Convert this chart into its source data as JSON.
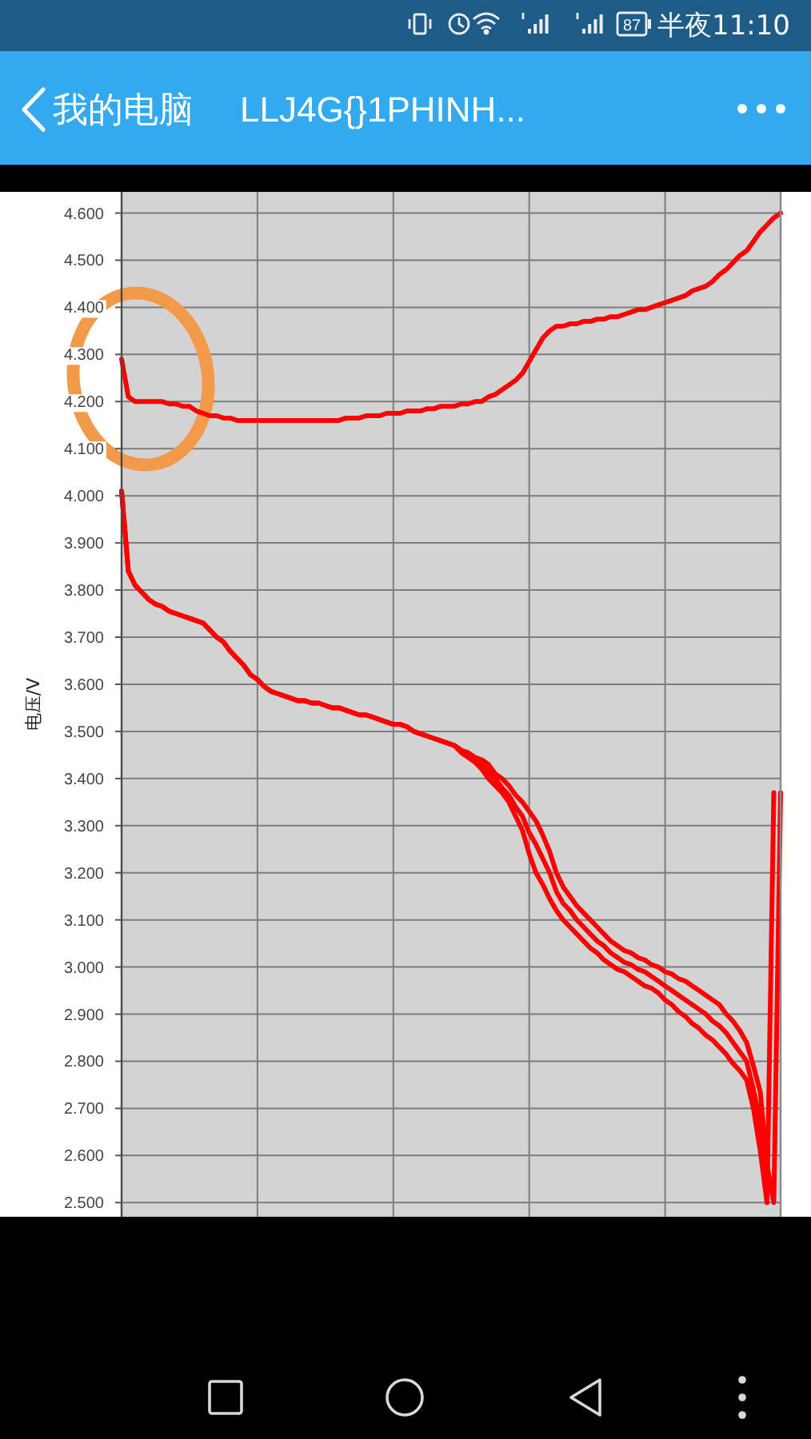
{
  "chart_data": {
    "type": "line",
    "title": "我的电脑",
    "subtitle": "LLJ4G{}1PHINH...",
    "ylabel": "电压/V",
    "annotations": [
      "87",
      "半夜11:10"
    ],
    "categories": [
      null,
      null,
      null,
      null,
      null,
      null,
      null,
      null,
      null,
      null,
      null,
      null,
      null,
      null,
      null,
      null,
      null,
      null,
      null,
      null,
      null,
      null,
      null,
      null,
      null,
      null,
      null,
      null,
      null,
      null,
      null,
      null,
      null,
      null,
      null,
      null,
      null,
      null,
      null,
      null,
      null,
      null,
      null,
      null,
      null,
      null,
      null,
      null,
      null,
      null,
      null,
      null,
      null,
      null,
      null,
      null,
      null,
      null,
      null,
      null,
      null,
      null,
      null,
      null,
      null,
      null,
      null,
      null,
      null,
      null,
      null,
      null,
      null,
      null,
      null,
      null,
      null,
      null,
      null,
      null,
      null,
      null,
      null,
      null,
      null,
      null,
      null,
      null,
      null,
      null,
      null,
      null,
      null,
      null,
      null,
      null,
      null,
      null
    ],
    "ylim": [
      2.47,
      4.645
    ],
    "yticks": [
      {
        "value": 2.5,
        "label": "2.500"
      },
      {
        "value": 2.6,
        "label": "2.600"
      },
      {
        "value": 2.7,
        "label": "2.700"
      },
      {
        "value": 2.8,
        "label": "2.800"
      },
      {
        "value": 2.9,
        "label": "2.900"
      },
      {
        "value": 3.0,
        "label": "3.000"
      },
      {
        "value": 3.1,
        "label": "3.100"
      },
      {
        "value": 3.2,
        "label": "3.200"
      },
      {
        "value": 3.3,
        "label": "3.300"
      },
      {
        "value": 3.4,
        "label": "3.400"
      },
      {
        "value": 3.5,
        "label": "3.500"
      },
      {
        "value": 3.6,
        "label": "3.600"
      },
      {
        "value": 3.7,
        "label": "3.700"
      },
      {
        "value": 3.8,
        "label": "3.800"
      },
      {
        "value": 3.9,
        "label": "3.900"
      },
      {
        "value": 4.0,
        "label": "4.000"
      },
      {
        "value": 4.1,
        "label": "4.100"
      },
      {
        "value": 4.2,
        "label": "4.200"
      },
      {
        "value": 4.3,
        "label": "4.300"
      },
      {
        "value": 4.4,
        "label": "4.400"
      },
      {
        "value": 4.5,
        "label": "4.500"
      },
      {
        "value": 4.6,
        "label": "4.600"
      }
    ],
    "tick_labels": "y",
    "grid": true,
    "line_style": "solid",
    "series": [
      {
        "color": "#ff0000",
        "values": [
          4.29,
          4.21,
          4.2,
          4.2,
          4.2,
          4.2,
          4.2,
          4.195,
          4.195,
          4.19,
          4.19,
          4.18,
          4.175,
          4.17,
          4.17,
          4.165,
          4.165,
          4.16,
          4.16,
          4.16,
          4.16,
          4.16,
          4.16,
          4.16,
          4.16,
          4.16,
          4.16,
          4.16,
          4.16,
          4.16,
          4.16,
          4.16,
          4.16,
          4.165,
          4.165,
          4.165,
          4.17,
          4.17,
          4.17,
          4.175,
          4.175,
          4.175,
          4.18,
          4.18,
          4.18,
          4.185,
          4.185,
          4.19,
          4.19,
          4.19,
          4.195,
          4.195,
          4.2,
          4.2,
          4.21,
          4.215,
          4.225,
          4.235,
          4.245,
          4.26,
          4.285,
          4.31,
          4.335,
          4.35,
          4.36,
          4.36,
          4.365,
          4.365,
          4.37,
          4.37,
          4.375,
          4.375,
          4.38,
          4.38,
          4.385,
          4.39,
          4.395,
          4.395,
          4.4,
          4.405,
          4.41,
          4.415,
          4.42,
          4.425,
          4.435,
          4.44,
          4.445,
          4.455,
          4.47,
          4.48,
          4.495,
          4.51,
          4.52,
          4.54,
          4.56,
          4.575,
          4.59,
          4.6
        ]
      },
      {
        "color": "#ff0000",
        "values": [
          4.01,
          3.84,
          3.81,
          3.795,
          3.78,
          3.77,
          3.765,
          3.755,
          3.75,
          3.745,
          3.74,
          3.735,
          3.73,
          3.715,
          3.7,
          3.69,
          3.67,
          3.655,
          3.64,
          3.62,
          3.61,
          3.595,
          3.585,
          3.58,
          3.575,
          3.57,
          3.565,
          3.565,
          3.56,
          3.56,
          3.555,
          3.55,
          3.55,
          3.545,
          3.54,
          3.535,
          3.535,
          3.53,
          3.525,
          3.52,
          3.515,
          3.515,
          3.51,
          3.5,
          3.495,
          3.49,
          3.485,
          3.48,
          3.475,
          3.47,
          3.46,
          3.455,
          3.445,
          3.44,
          3.43,
          3.41,
          3.4,
          3.385,
          3.365,
          3.35,
          3.33,
          3.31,
          3.28,
          3.245,
          3.2,
          3.17,
          3.15,
          3.13,
          3.115,
          3.1,
          3.085,
          3.07,
          3.055,
          3.045,
          3.035,
          3.03,
          3.02,
          3.015,
          3.005,
          3.0,
          2.99,
          2.985,
          2.975,
          2.97,
          2.96,
          2.95,
          2.94,
          2.93,
          2.92,
          2.9,
          2.885,
          2.865,
          2.84,
          2.79,
          2.735,
          2.58,
          2.5,
          3.37
        ]
      },
      {
        "color": "#ff0000",
        "values": [
          4.01,
          3.84,
          3.81,
          3.795,
          3.78,
          3.77,
          3.765,
          3.755,
          3.75,
          3.745,
          3.74,
          3.735,
          3.73,
          3.715,
          3.7,
          3.69,
          3.67,
          3.655,
          3.64,
          3.62,
          3.61,
          3.595,
          3.585,
          3.58,
          3.575,
          3.57,
          3.565,
          3.565,
          3.56,
          3.56,
          3.555,
          3.55,
          3.55,
          3.545,
          3.54,
          3.535,
          3.535,
          3.53,
          3.525,
          3.52,
          3.515,
          3.515,
          3.51,
          3.5,
          3.495,
          3.49,
          3.485,
          3.48,
          3.475,
          3.47,
          3.455,
          3.445,
          3.435,
          3.42,
          3.4,
          3.385,
          3.37,
          3.35,
          3.32,
          3.29,
          3.24,
          3.2,
          3.175,
          3.145,
          3.12,
          3.1,
          3.085,
          3.07,
          3.055,
          3.04,
          3.03,
          3.015,
          3.005,
          2.995,
          2.99,
          2.98,
          2.97,
          2.96,
          2.955,
          2.945,
          2.93,
          2.92,
          2.905,
          2.895,
          2.88,
          2.87,
          2.855,
          2.845,
          2.83,
          2.815,
          2.795,
          2.78,
          2.76,
          2.7,
          2.61,
          2.5,
          3.37,
          null
        ]
      },
      {
        "color": "#ff0000",
        "values": [
          null,
          null,
          null,
          null,
          null,
          null,
          null,
          null,
          null,
          null,
          null,
          null,
          null,
          null,
          null,
          null,
          null,
          null,
          null,
          null,
          null,
          null,
          null,
          null,
          null,
          null,
          null,
          null,
          null,
          null,
          null,
          null,
          null,
          null,
          null,
          null,
          null,
          null,
          null,
          null,
          null,
          null,
          null,
          null,
          null,
          null,
          null,
          null,
          null,
          3.47,
          3.46,
          3.45,
          3.44,
          3.43,
          3.415,
          3.4,
          3.38,
          3.365,
          3.34,
          3.32,
          3.285,
          3.26,
          3.23,
          3.2,
          3.16,
          3.135,
          3.12,
          3.1,
          3.085,
          3.07,
          3.055,
          3.045,
          3.03,
          3.02,
          3.01,
          3.005,
          2.995,
          2.99,
          2.98,
          2.97,
          2.96,
          2.95,
          2.94,
          2.93,
          2.92,
          2.91,
          2.9,
          2.885,
          2.875,
          2.86,
          2.84,
          2.82,
          2.8,
          2.74,
          2.67,
          2.5,
          null,
          null
        ]
      }
    ]
  }
}
